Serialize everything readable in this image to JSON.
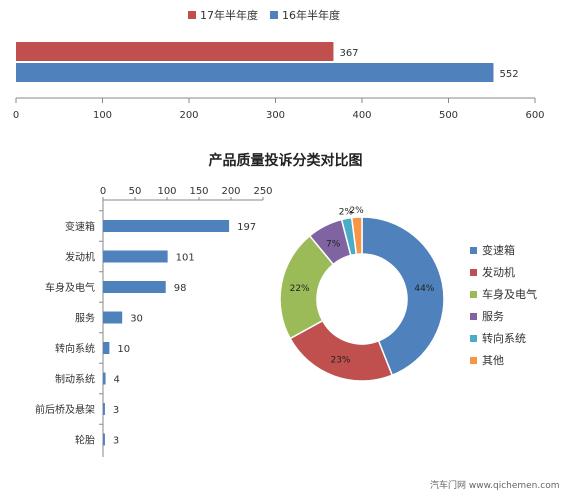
{
  "colors": {
    "s17": "#c0504d",
    "s16": "#4f81bd",
    "hbar": "#4f81bd"
  },
  "legend": {
    "s17": "17年半年度",
    "s16": "16年半年度"
  },
  "main_title": "产品质量投诉分类对比图",
  "watermark": "汽车门网 www.qichemen.com",
  "chart_data": [
    {
      "type": "bar",
      "orientation": "horizontal",
      "series": [
        {
          "name": "17年半年度",
          "values": [
            367
          ],
          "color": "#c0504d"
        },
        {
          "name": "16年半年度",
          "values": [
            552
          ],
          "color": "#4f81bd"
        }
      ],
      "data_labels": [
        "367",
        "552"
      ],
      "xlim": [
        0,
        600
      ],
      "ticks": [
        "0",
        "100",
        "200",
        "300",
        "400",
        "500",
        "600"
      ],
      "legend_position": "top"
    },
    {
      "type": "bar",
      "orientation": "horizontal",
      "categories": [
        "变速箱",
        "发动机",
        "车身及电气",
        "服务",
        "转向系统",
        "制动系统",
        "前后桥及悬架",
        "轮胎"
      ],
      "values": [
        197,
        101,
        98,
        30,
        10,
        4,
        3,
        3
      ],
      "data_labels": [
        "197",
        "101",
        "98",
        "30",
        "10",
        "4",
        "3",
        "3"
      ],
      "xlim": [
        0,
        250
      ],
      "ticks": [
        "0",
        "50",
        "100",
        "150",
        "200",
        "250"
      ]
    },
    {
      "type": "pie",
      "variant": "donut",
      "categories": [
        "变速箱",
        "发动机",
        "车身及电气",
        "服务",
        "转向系统",
        "其他"
      ],
      "values": [
        44,
        23,
        22,
        7,
        2,
        2
      ],
      "data_labels": [
        "44%",
        "23%",
        "22%",
        "7%",
        "2%",
        "2%"
      ],
      "colors": [
        "#4f81bd",
        "#c0504d",
        "#9bbb59",
        "#8064a2",
        "#4bacc6",
        "#f79646"
      ],
      "legend_position": "right"
    }
  ]
}
